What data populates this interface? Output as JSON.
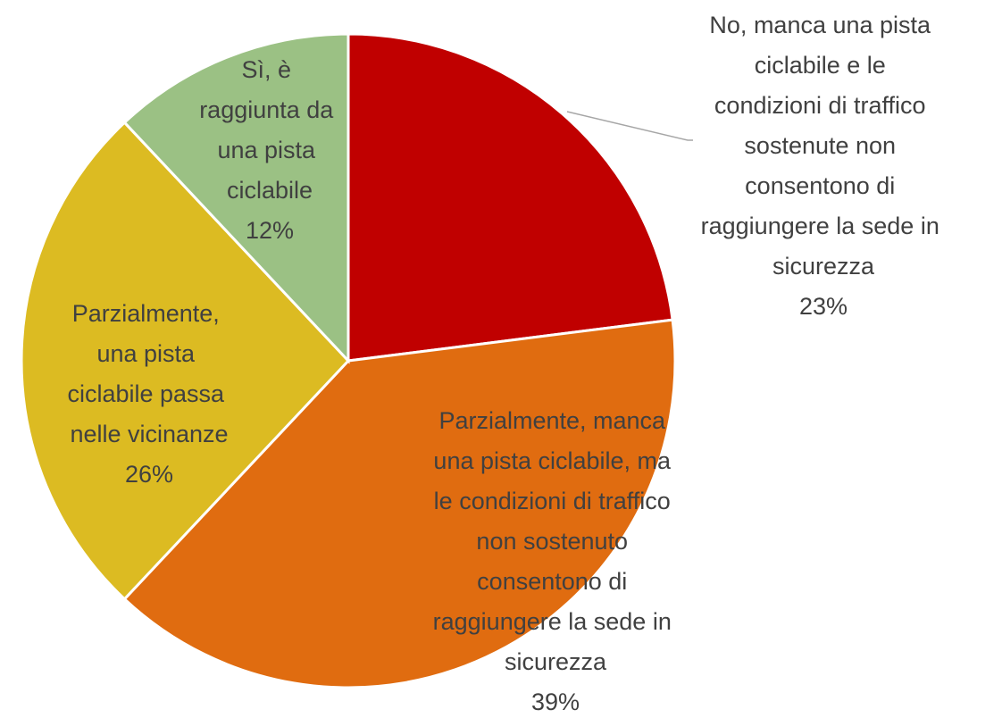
{
  "chart_data": {
    "type": "pie",
    "categories": [
      "No, manca una pista ciclabile e le condizioni di traffico sostenute non consentono di raggiungere la sede in sicurezza",
      "Parzialmente, manca una pista ciclabile, ma le condizioni di traffico non sostenuto consentono di raggiungere la sede in sicurezza",
      "Parzialmente, una pista ciclabile passa nelle vicinanze",
      "Sì, è raggiunta da una pista ciclabile"
    ],
    "values": [
      23,
      39,
      26,
      12
    ],
    "value_labels": [
      "23%",
      "39%",
      "26%",
      "12%"
    ],
    "colors": [
      "#c00000",
      "#e06c10",
      "#dcbb22",
      "#9bc184"
    ]
  }
}
